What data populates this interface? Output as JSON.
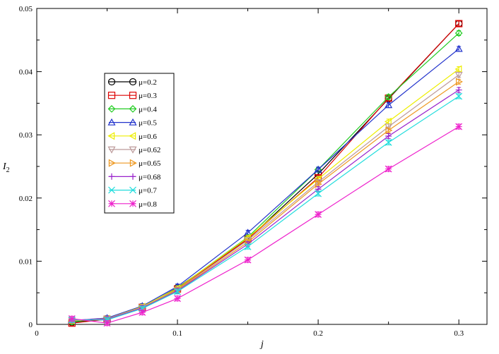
{
  "chart_data": {
    "type": "line",
    "title": "",
    "xlabel": "j",
    "ylabel": "I",
    "ylabel_subscript": "2",
    "xlim": [
      0,
      0.32
    ],
    "ylim": [
      0,
      0.05
    ],
    "x_ticks": [
      0,
      0.1,
      0.2,
      0.3
    ],
    "x_tick_labels": [
      "0",
      "0.1",
      "0.2",
      "0.3"
    ],
    "y_ticks": [
      0,
      0.01,
      0.02,
      0.03,
      0.04,
      0.05
    ],
    "y_tick_labels": [
      "0",
      "0.01",
      "0.02",
      "0.03",
      "0.04",
      "0.05"
    ],
    "grid": false,
    "legend_position": "upper-left",
    "x": [
      0.025,
      0.05,
      0.075,
      0.1,
      0.15,
      0.2,
      0.25,
      0.3
    ],
    "series": [
      {
        "name": "μ=0.2",
        "color": "#000000",
        "marker": "circle",
        "values": [
          0.0003,
          0.0008,
          0.0027,
          0.0058,
          0.0135,
          0.0238,
          0.0357,
          0.0476
        ]
      },
      {
        "name": "μ=0.3",
        "color": "#dd0000",
        "marker": "square",
        "values": [
          0.0002,
          0.0008,
          0.0027,
          0.0056,
          0.0135,
          0.0232,
          0.0358,
          0.0476
        ]
      },
      {
        "name": "μ=0.4",
        "color": "#22cc22",
        "marker": "diamond",
        "values": [
          0.0004,
          0.0009,
          0.0028,
          0.0057,
          0.0138,
          0.0245,
          0.036,
          0.0461
        ]
      },
      {
        "name": "μ=0.5",
        "color": "#2233cc",
        "marker": "triangle-up",
        "values": [
          0.0006,
          0.001,
          0.0029,
          0.006,
          0.0145,
          0.0245,
          0.0347,
          0.0436
        ]
      },
      {
        "name": "μ=0.6",
        "color": "#eeee00",
        "marker": "triangle-left",
        "values": [
          0.0006,
          0.0009,
          0.0028,
          0.0057,
          0.0137,
          0.023,
          0.0321,
          0.0404
        ]
      },
      {
        "name": "μ=0.62",
        "color": "#bc9a9a",
        "marker": "triangle-down",
        "values": [
          0.0006,
          0.0009,
          0.0027,
          0.0055,
          0.0133,
          0.0225,
          0.0313,
          0.0395
        ]
      },
      {
        "name": "μ=0.65",
        "color": "#ee9922",
        "marker": "triangle-right",
        "values": [
          0.0006,
          0.0008,
          0.0026,
          0.0054,
          0.013,
          0.0222,
          0.0307,
          0.0384
        ]
      },
      {
        "name": "μ=0.68",
        "color": "#9922cc",
        "marker": "plus",
        "values": [
          0.0007,
          0.0008,
          0.0026,
          0.0053,
          0.0127,
          0.0214,
          0.0298,
          0.0371
        ]
      },
      {
        "name": "μ=0.7",
        "color": "#22dddd",
        "marker": "x",
        "values": [
          0.0007,
          0.0007,
          0.0025,
          0.0052,
          0.0123,
          0.0207,
          0.0288,
          0.0361
        ]
      },
      {
        "name": "μ=0.8",
        "color": "#ee22cc",
        "marker": "asterisk",
        "values": [
          0.0009,
          0.0002,
          0.0019,
          0.0041,
          0.0102,
          0.0174,
          0.0246,
          0.0313
        ]
      }
    ]
  }
}
